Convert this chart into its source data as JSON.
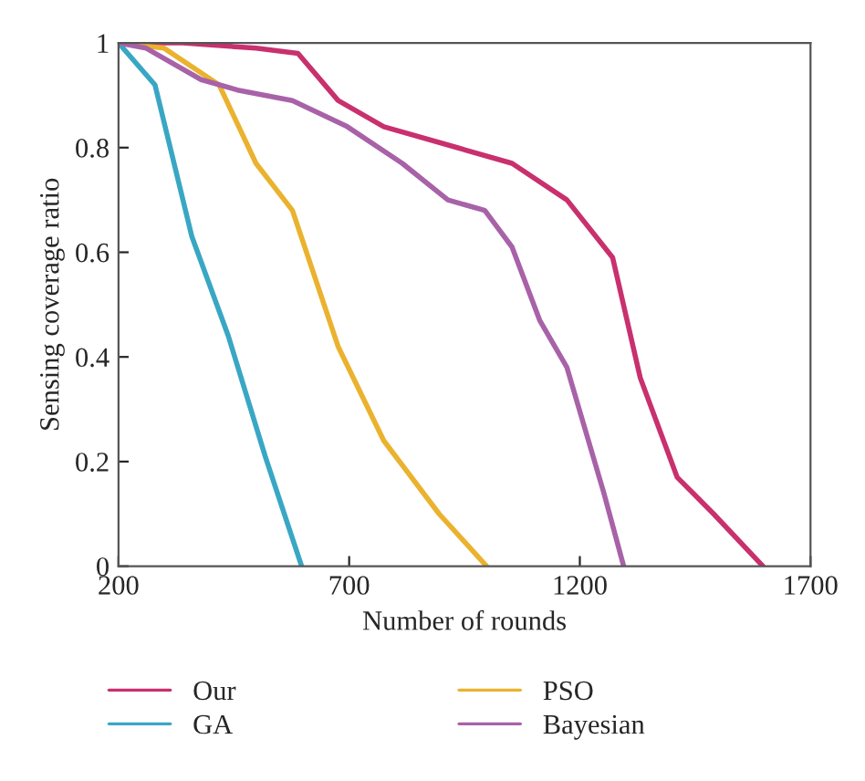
{
  "chart_data": {
    "type": "line",
    "xlabel": "Number of rounds",
    "ylabel": "Sensing coverage ratio",
    "xlim": [
      200,
      1700
    ],
    "xticks": [
      200,
      700,
      1200,
      1700
    ],
    "ylim": [
      0,
      1
    ],
    "yticks": [
      0,
      0.2,
      0.4,
      0.6,
      0.8,
      1
    ],
    "grid": false,
    "legend": "bottom",
    "marker": "none",
    "line_style": "solid",
    "series": [
      {
        "name": "Our",
        "color": "#c8306e",
        "x": [
          200,
          339,
          498,
          589,
          676,
          775,
          934,
          1053,
          1172,
          1271,
          1331,
          1411,
          1490,
          1597
        ],
        "values": [
          1,
          1,
          0.99,
          0.98,
          0.89,
          0.84,
          0.8,
          0.77,
          0.7,
          0.59,
          0.36,
          0.17,
          0.1,
          0
        ]
      },
      {
        "name": "GA",
        "color": "#39a7c4",
        "x": [
          200,
          279,
          359,
          438,
          518,
          597
        ],
        "values": [
          1,
          0.92,
          0.63,
          0.44,
          0.21,
          0
        ]
      },
      {
        "name": "PSO",
        "color": "#eab22e",
        "x": [
          200,
          299,
          418,
          498,
          577,
          676,
          775,
          895,
          998
        ],
        "values": [
          1,
          0.99,
          0.92,
          0.77,
          0.68,
          0.42,
          0.24,
          0.1,
          0
        ]
      },
      {
        "name": "Bayesian",
        "color": "#a862a8",
        "x": [
          200,
          260,
          379,
          458,
          577,
          696,
          815,
          914,
          994,
          1053,
          1113,
          1172,
          1252,
          1295
        ],
        "values": [
          1,
          0.99,
          0.93,
          0.91,
          0.89,
          0.84,
          0.77,
          0.7,
          0.68,
          0.61,
          0.47,
          0.38,
          0.14,
          0
        ]
      }
    ]
  }
}
